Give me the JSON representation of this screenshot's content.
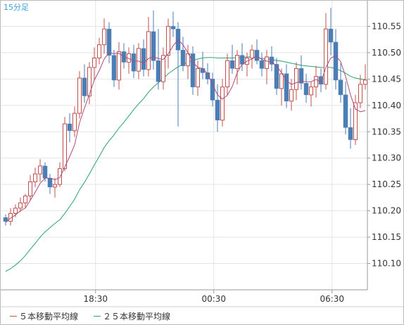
{
  "chart_data": {
    "type": "candlestick",
    "period_label": "15分足",
    "y_ticks": [
      "110.55",
      "110.50",
      "110.45",
      "110.40",
      "110.35",
      "110.30",
      "110.25",
      "110.20",
      "110.15",
      "110.10"
    ],
    "y_tick_values": [
      110.55,
      110.5,
      110.45,
      110.4,
      110.35,
      110.3,
      110.25,
      110.2,
      110.15,
      110.1
    ],
    "ylim": [
      110.05,
      110.6
    ],
    "x_ticks": [
      "18:30",
      "00:30",
      "06:30"
    ],
    "x_tick_positions": [
      18.25,
      42.25,
      66.25
    ],
    "legend": [
      {
        "name": "５本移動平均線",
        "color": "#c0504d"
      },
      {
        "name": "２５本移動平均線",
        "color": "#2aa36b"
      }
    ],
    "colors": {
      "up": "#c0504d",
      "down": "#4a7eb5",
      "ma5": "#b04a7a",
      "ma25": "#2aa36b",
      "grid": "#e4e4e4"
    },
    "candles": [
      [
        110.187,
        110.193,
        110.172,
        110.18
      ],
      [
        110.18,
        110.205,
        110.172,
        110.195
      ],
      [
        110.195,
        110.212,
        110.188,
        110.205
      ],
      [
        110.205,
        110.225,
        110.198,
        110.215
      ],
      [
        110.215,
        110.232,
        110.205,
        110.228
      ],
      [
        110.228,
        110.268,
        110.22,
        110.255
      ],
      [
        110.255,
        110.282,
        110.245,
        110.27
      ],
      [
        110.27,
        110.298,
        110.255,
        110.285
      ],
      [
        110.285,
        110.292,
        110.255,
        110.262
      ],
      [
        110.262,
        110.27,
        110.232,
        110.245
      ],
      [
        110.245,
        110.262,
        110.225,
        110.25
      ],
      [
        110.25,
        110.292,
        110.245,
        110.28
      ],
      [
        110.28,
        110.378,
        110.275,
        110.365
      ],
      [
        110.365,
        110.385,
        110.33,
        110.352
      ],
      [
        110.352,
        110.398,
        110.34,
        110.385
      ],
      [
        110.385,
        110.465,
        110.375,
        110.452
      ],
      [
        110.452,
        110.478,
        110.405,
        110.418
      ],
      [
        110.418,
        110.482,
        110.402,
        110.472
      ],
      [
        110.472,
        110.51,
        110.448,
        110.49
      ],
      [
        110.49,
        110.528,
        110.478,
        110.515
      ],
      [
        110.515,
        110.565,
        110.498,
        110.545
      ],
      [
        110.545,
        110.558,
        110.48,
        110.495
      ],
      [
        110.495,
        110.505,
        110.435,
        110.448
      ],
      [
        110.448,
        110.52,
        110.43,
        110.502
      ],
      [
        110.502,
        110.518,
        110.47,
        110.482
      ],
      [
        110.482,
        110.51,
        110.46,
        110.498
      ],
      [
        110.498,
        110.515,
        110.452,
        110.465
      ],
      [
        110.465,
        110.518,
        110.45,
        110.508
      ],
      [
        110.508,
        110.525,
        110.455,
        110.468
      ],
      [
        110.468,
        110.568,
        110.455,
        110.54
      ],
      [
        110.54,
        110.58,
        110.468,
        110.485
      ],
      [
        110.485,
        110.545,
        110.43,
        110.445
      ],
      [
        110.445,
        110.51,
        110.43,
        110.495
      ],
      [
        110.495,
        110.565,
        110.47,
        110.55
      ],
      [
        110.55,
        110.578,
        110.53,
        110.545
      ],
      [
        110.545,
        110.558,
        110.36,
        110.505
      ],
      [
        110.505,
        110.53,
        110.465,
        110.475
      ],
      [
        110.475,
        110.515,
        110.45,
        110.498
      ],
      [
        110.498,
        110.512,
        110.42,
        110.435
      ],
      [
        110.435,
        110.485,
        110.418,
        110.47
      ],
      [
        110.47,
        110.502,
        110.45,
        110.462
      ],
      [
        110.462,
        110.48,
        110.44,
        110.45
      ],
      [
        110.45,
        110.462,
        110.398,
        110.41
      ],
      [
        110.41,
        110.44,
        110.35,
        110.372
      ],
      [
        110.372,
        110.45,
        110.36,
        110.435
      ],
      [
        110.435,
        110.498,
        110.42,
        110.485
      ],
      [
        110.485,
        110.515,
        110.46,
        110.47
      ],
      [
        110.47,
        110.505,
        110.44,
        110.495
      ],
      [
        110.495,
        110.518,
        110.465,
        110.478
      ],
      [
        110.478,
        110.5,
        110.455,
        110.49
      ],
      [
        110.49,
        110.515,
        110.47,
        110.505
      ],
      [
        110.505,
        110.525,
        110.478,
        110.485
      ],
      [
        110.485,
        110.5,
        110.455,
        110.47
      ],
      [
        110.47,
        110.505,
        110.44,
        110.492
      ],
      [
        110.492,
        110.512,
        110.465,
        110.478
      ],
      [
        110.478,
        110.49,
        110.42,
        110.432
      ],
      [
        110.432,
        110.47,
        110.4,
        110.46
      ],
      [
        110.46,
        110.478,
        110.395,
        110.408
      ],
      [
        110.408,
        110.45,
        110.39,
        110.43
      ],
      [
        110.43,
        110.482,
        110.41,
        110.47
      ],
      [
        110.47,
        110.495,
        110.43,
        110.442
      ],
      [
        110.442,
        110.46,
        110.405,
        110.42
      ],
      [
        110.42,
        110.445,
        110.398,
        110.435
      ],
      [
        110.435,
        110.475,
        110.415,
        110.455
      ],
      [
        110.455,
        110.47,
        110.425,
        110.44
      ],
      [
        110.44,
        110.575,
        110.43,
        110.545
      ],
      [
        110.545,
        110.585,
        110.495,
        110.52
      ],
      [
        110.52,
        110.545,
        110.43,
        110.448
      ],
      [
        110.448,
        110.48,
        110.405,
        110.42
      ],
      [
        110.42,
        110.445,
        110.345,
        110.358
      ],
      [
        110.358,
        110.395,
        110.318,
        110.335
      ],
      [
        110.335,
        110.42,
        110.325,
        110.405
      ],
      [
        110.405,
        110.458,
        110.395,
        110.44
      ],
      [
        110.44,
        110.478,
        110.43,
        110.448
      ]
    ],
    "ma5": [
      110.178,
      110.186,
      110.192,
      110.2,
      110.205,
      110.22,
      110.235,
      110.252,
      110.262,
      110.262,
      110.259,
      110.263,
      110.283,
      110.303,
      110.325,
      110.367,
      110.395,
      110.421,
      110.448,
      110.466,
      110.488,
      110.5,
      110.498,
      110.499,
      110.492,
      110.489,
      110.484,
      110.484,
      110.48,
      110.489,
      110.492,
      110.489,
      110.487,
      110.498,
      110.513,
      110.525,
      110.515,
      110.5,
      110.482,
      110.472,
      110.47,
      110.46,
      110.44,
      110.42,
      110.412,
      110.419,
      110.436,
      110.462,
      110.478,
      110.484,
      110.488,
      110.494,
      110.487,
      110.484,
      110.482,
      110.475,
      110.462,
      110.447,
      110.44,
      110.443,
      110.446,
      110.445,
      110.445,
      110.449,
      110.444,
      110.472,
      110.49,
      110.494,
      110.483,
      110.455,
      110.42,
      110.393,
      110.388,
      110.39
    ],
    "ma25": [
      110.085,
      110.09,
      110.097,
      110.105,
      110.115,
      110.127,
      110.138,
      110.15,
      110.16,
      110.168,
      110.176,
      110.183,
      110.195,
      110.208,
      110.222,
      110.24,
      110.254,
      110.27,
      110.287,
      110.303,
      110.32,
      110.333,
      110.344,
      110.357,
      110.368,
      110.38,
      110.392,
      110.403,
      110.413,
      110.425,
      110.435,
      110.443,
      110.451,
      110.46,
      110.467,
      110.473,
      110.478,
      110.482,
      110.485,
      110.488,
      110.49,
      110.491,
      110.491,
      110.49,
      110.49,
      110.49,
      110.49,
      110.491,
      110.491,
      110.492,
      110.492,
      110.491,
      110.489,
      110.488,
      110.487,
      110.485,
      110.484,
      110.482,
      110.48,
      110.478,
      110.476,
      110.475,
      110.474,
      110.473,
      110.472,
      110.472,
      110.472,
      110.47,
      110.466,
      110.461,
      110.455,
      110.452,
      110.45,
      110.449
    ]
  }
}
